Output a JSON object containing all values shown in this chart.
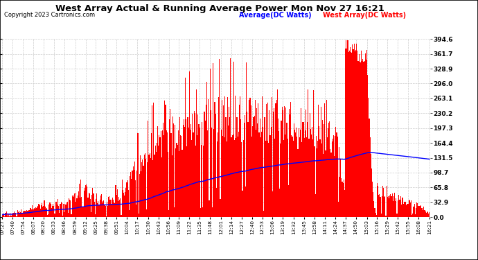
{
  "title": "West Array Actual & Running Average Power Mon Nov 27 16:21",
  "copyright": "Copyright 2023 Cartronics.com",
  "legend_avg": "Average(DC Watts)",
  "legend_west": "West Array(DC Watts)",
  "ylabel_right_ticks": [
    0.0,
    32.9,
    65.8,
    98.7,
    131.5,
    164.4,
    197.3,
    230.2,
    263.1,
    296.0,
    328.9,
    361.7,
    394.6
  ],
  "ymax": 394.6,
  "ymin": 0.0,
  "bar_color": "#FF0000",
  "avg_color": "#0000FF",
  "bg_color": "#FFFFFF",
  "grid_color": "#CCCCCC",
  "title_color": "#000000",
  "avg_legend_color": "#0000FF",
  "west_legend_color": "#FF0000",
  "x_labels": [
    "07:27",
    "07:40",
    "07:54",
    "08:07",
    "08:20",
    "08:33",
    "08:46",
    "08:59",
    "09:12",
    "09:25",
    "09:38",
    "09:51",
    "10:04",
    "10:17",
    "10:30",
    "10:43",
    "10:56",
    "11:09",
    "11:22",
    "11:35",
    "11:48",
    "12:01",
    "12:14",
    "12:27",
    "12:40",
    "12:53",
    "13:06",
    "13:19",
    "13:32",
    "13:45",
    "13:58",
    "14:11",
    "14:24",
    "14:37",
    "14:50",
    "15:03",
    "15:16",
    "15:29",
    "15:42",
    "15:55",
    "16:08",
    "16:21"
  ]
}
